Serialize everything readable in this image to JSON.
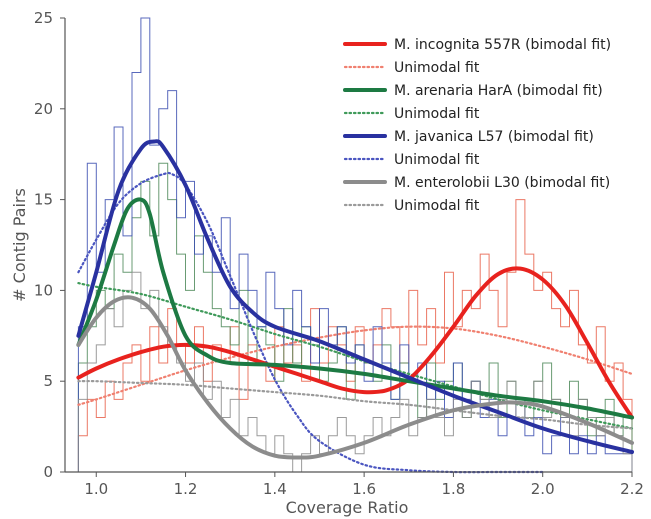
{
  "chart_data": {
    "type": "line",
    "title": "",
    "xlabel": "Coverage Ratio",
    "ylabel": "# Contig Pairs",
    "xlim": [
      0.93,
      2.2
    ],
    "ylim": [
      0,
      25
    ],
    "xticks": [
      "1.0",
      "1.2",
      "1.4",
      "1.6",
      "1.8",
      "2.0",
      "2.2"
    ],
    "yticks": [
      "0",
      "5",
      "10",
      "15",
      "20",
      "25"
    ],
    "grid": false,
    "legend_position": "top-right",
    "histograms": [
      {
        "name": "M. incognita 557R",
        "color": "#e8604a",
        "bin_edges": [
          0.96,
          0.98,
          1.0,
          1.02,
          1.04,
          1.06,
          1.08,
          1.1,
          1.12,
          1.14,
          1.16,
          1.18,
          1.2,
          1.22,
          1.24,
          1.26,
          1.28,
          1.3,
          1.32,
          1.34,
          1.36,
          1.38,
          1.4,
          1.42,
          1.44,
          1.46,
          1.48,
          1.5,
          1.52,
          1.54,
          1.56,
          1.58,
          1.6,
          1.62,
          1.64,
          1.66,
          1.68,
          1.7,
          1.72,
          1.74,
          1.76,
          1.78,
          1.8,
          1.82,
          1.84,
          1.86,
          1.88,
          1.9,
          1.92,
          1.94,
          1.96,
          1.98,
          2.0,
          2.02,
          2.04,
          2.06,
          2.08,
          2.1,
          2.12,
          2.14,
          2.16,
          2.18,
          2.2
        ],
        "counts": [
          2,
          4,
          3,
          5,
          4,
          6,
          7,
          5,
          8,
          6,
          9,
          7,
          6,
          8,
          5,
          7,
          6,
          8,
          4,
          7,
          6,
          5,
          8,
          6,
          7,
          5,
          9,
          6,
          8,
          7,
          5,
          8,
          6,
          7,
          9,
          8,
          6,
          10,
          7,
          9,
          6,
          11,
          8,
          10,
          9,
          12,
          10,
          8,
          11,
          15,
          12,
          10,
          11,
          9,
          8,
          10,
          7,
          6,
          8,
          5,
          6,
          4
        ]
      },
      {
        "name": "M. arenaria HarA",
        "color": "#4f8a5b",
        "bin_edges": [
          0.96,
          0.98,
          1.0,
          1.02,
          1.04,
          1.06,
          1.08,
          1.1,
          1.12,
          1.14,
          1.16,
          1.18,
          1.2,
          1.22,
          1.24,
          1.26,
          1.28,
          1.3,
          1.32,
          1.34,
          1.36,
          1.38,
          1.4,
          1.42,
          1.44,
          1.46,
          1.48,
          1.5,
          1.52,
          1.54,
          1.56,
          1.58,
          1.6,
          1.62,
          1.64,
          1.66,
          1.68,
          1.7,
          1.72,
          1.74,
          1.76,
          1.78,
          1.8,
          1.82,
          1.84,
          1.86,
          1.88,
          1.9,
          1.92,
          1.94,
          1.96,
          1.98,
          2.0,
          2.02,
          2.04,
          2.06,
          2.08,
          2.1,
          2.12,
          2.14,
          2.16,
          2.18,
          2.2
        ],
        "counts": [
          6,
          8,
          10,
          9,
          12,
          11,
          14,
          16,
          13,
          17,
          15,
          12,
          10,
          13,
          11,
          9,
          8,
          7,
          10,
          6,
          8,
          7,
          5,
          9,
          6,
          8,
          7,
          5,
          6,
          8,
          4,
          7,
          6,
          5,
          7,
          4,
          6,
          5,
          3,
          6,
          4,
          5,
          6,
          3,
          5,
          4,
          6,
          3,
          5,
          4,
          3,
          5,
          6,
          4,
          3,
          5,
          4,
          2,
          3,
          4,
          2,
          3
        ]
      },
      {
        "name": "M. javanica L57",
        "color": "#3c4fb0",
        "bin_edges": [
          0.96,
          0.98,
          1.0,
          1.02,
          1.04,
          1.06,
          1.08,
          1.1,
          1.12,
          1.14,
          1.16,
          1.18,
          1.2,
          1.22,
          1.24,
          1.26,
          1.28,
          1.3,
          1.32,
          1.34,
          1.36,
          1.38,
          1.4,
          1.42,
          1.44,
          1.46,
          1.48,
          1.5,
          1.52,
          1.54,
          1.56,
          1.58,
          1.6,
          1.62,
          1.64,
          1.66,
          1.68,
          1.7,
          1.72,
          1.74,
          1.76,
          1.78,
          1.8,
          1.82,
          1.84,
          1.86,
          1.88,
          1.9,
          1.92,
          1.94,
          1.96,
          1.98,
          2.0,
          2.02,
          2.04,
          2.06,
          2.08,
          2.1,
          2.12,
          2.14,
          2.16,
          2.18,
          2.2
        ],
        "counts": [
          8,
          17,
          11,
          15,
          19,
          13,
          22,
          25,
          18,
          20,
          21,
          14,
          16,
          12,
          13,
          11,
          14,
          9,
          12,
          10,
          8,
          11,
          9,
          7,
          10,
          8,
          6,
          9,
          7,
          8,
          6,
          7,
          5,
          8,
          6,
          4,
          7,
          5,
          6,
          4,
          5,
          3,
          6,
          4,
          5,
          3,
          4,
          2,
          3,
          4,
          2,
          3,
          1,
          2,
          3,
          1,
          2,
          1,
          2,
          1,
          1,
          1
        ]
      },
      {
        "name": "M. enterolobii L30",
        "color": "#8a8a8a",
        "bin_edges": [
          0.96,
          0.98,
          1.0,
          1.02,
          1.04,
          1.06,
          1.08,
          1.1,
          1.12,
          1.14,
          1.16,
          1.18,
          1.2,
          1.22,
          1.24,
          1.26,
          1.28,
          1.3,
          1.32,
          1.34,
          1.36,
          1.38,
          1.4,
          1.42,
          1.44,
          1.46,
          1.48,
          1.5,
          1.52,
          1.54,
          1.56,
          1.58,
          1.6,
          1.62,
          1.64,
          1.66,
          1.68,
          1.7,
          1.72,
          1.74,
          1.76,
          1.78,
          1.8,
          1.82,
          1.84,
          1.86,
          1.88,
          1.9,
          1.92,
          1.94,
          1.96,
          1.98,
          2.0,
          2.02,
          2.04,
          2.06,
          2.08,
          2.1,
          2.12,
          2.14,
          2.16,
          2.18,
          2.2
        ],
        "counts": [
          4,
          6,
          7,
          9,
          8,
          10,
          11,
          9,
          10,
          8,
          7,
          6,
          5,
          6,
          4,
          5,
          3,
          4,
          2,
          3,
          2,
          1,
          2,
          1,
          0,
          1,
          2,
          1,
          2,
          3,
          2,
          1,
          2,
          3,
          2,
          3,
          4,
          2,
          3,
          4,
          3,
          2,
          4,
          3,
          5,
          4,
          3,
          4,
          5,
          3,
          4,
          5,
          3,
          4,
          3,
          2,
          4,
          3,
          2,
          3,
          2,
          1
        ]
      }
    ],
    "series": [
      {
        "name": "M. incognita 557R (bimodal fit)",
        "color": "#e8221e",
        "style": "solid",
        "x": [
          0.96,
          1.0,
          1.05,
          1.1,
          1.15,
          1.2,
          1.25,
          1.3,
          1.35,
          1.4,
          1.45,
          1.5,
          1.55,
          1.6,
          1.65,
          1.7,
          1.75,
          1.8,
          1.85,
          1.9,
          1.95,
          2.0,
          2.05,
          2.1,
          2.15,
          2.2
        ],
        "y": [
          5.2,
          5.7,
          6.2,
          6.6,
          6.9,
          7.0,
          6.9,
          6.6,
          6.2,
          5.8,
          5.4,
          5.0,
          4.6,
          4.4,
          4.5,
          5.1,
          6.4,
          8.0,
          9.7,
          10.9,
          11.2,
          10.6,
          9.2,
          7.1,
          4.9,
          3.0
        ]
      },
      {
        "name": "Unimodal fit",
        "color": "#f08070",
        "style": "dotted",
        "x": [
          0.96,
          1.0,
          1.1,
          1.2,
          1.3,
          1.4,
          1.5,
          1.6,
          1.7,
          1.8,
          1.9,
          2.0,
          2.1,
          2.2
        ],
        "y": [
          3.7,
          4.0,
          4.8,
          5.6,
          6.3,
          6.9,
          7.4,
          7.8,
          8.0,
          7.9,
          7.5,
          6.9,
          6.2,
          5.4
        ]
      },
      {
        "name": "M. arenaria HarA (bimodal fit)",
        "color": "#1d7a43",
        "style": "solid",
        "x": [
          0.96,
          1.0,
          1.04,
          1.07,
          1.1,
          1.12,
          1.15,
          1.2,
          1.25,
          1.3,
          1.4,
          1.5,
          1.6,
          1.7,
          1.8,
          1.9,
          2.0,
          2.1,
          2.2
        ],
        "y": [
          7.0,
          9.5,
          12.5,
          14.5,
          15.0,
          14.2,
          11.0,
          7.5,
          6.4,
          6.0,
          5.9,
          5.7,
          5.4,
          5.0,
          4.6,
          4.2,
          3.9,
          3.5,
          3.0
        ]
      },
      {
        "name": "Unimodal fit",
        "color": "#3f9a5a",
        "style": "dotted",
        "x": [
          0.96,
          1.0,
          1.1,
          1.2,
          1.3,
          1.4,
          1.5,
          1.6,
          1.7,
          1.8,
          1.9,
          2.0,
          2.1,
          2.2
        ],
        "y": [
          10.4,
          10.2,
          9.8,
          9.1,
          8.4,
          7.6,
          6.9,
          6.1,
          5.4,
          4.7,
          4.0,
          3.4,
          2.9,
          2.4
        ]
      },
      {
        "name": "M. javanica L57 (bimodal fit)",
        "color": "#2931a0",
        "style": "solid",
        "x": [
          0.96,
          1.0,
          1.05,
          1.1,
          1.13,
          1.15,
          1.2,
          1.25,
          1.3,
          1.35,
          1.4,
          1.5,
          1.6,
          1.7,
          1.8,
          1.9,
          2.0,
          2.1,
          2.2
        ],
        "y": [
          7.5,
          11.0,
          15.5,
          17.8,
          18.2,
          17.9,
          15.8,
          12.8,
          10.2,
          8.8,
          8.0,
          7.2,
          6.2,
          5.2,
          4.2,
          3.3,
          2.4,
          1.7,
          1.1
        ]
      },
      {
        "name": "Unimodal fit",
        "color": "#4a55c0",
        "style": "dotted",
        "x": [
          0.96,
          1.0,
          1.05,
          1.1,
          1.15,
          1.17,
          1.2,
          1.25,
          1.3,
          1.35,
          1.4,
          1.45,
          1.5,
          1.6,
          1.7,
          1.8,
          1.9,
          2.0
        ],
        "y": [
          11.0,
          12.8,
          14.8,
          15.9,
          16.4,
          16.4,
          15.8,
          13.7,
          10.8,
          7.8,
          5.1,
          3.1,
          1.7,
          0.4,
          0.1,
          0.0,
          0.0,
          0.0
        ]
      },
      {
        "name": "M. enterolobii L30 (bimodal fit)",
        "color": "#8c8c8c",
        "style": "solid",
        "x": [
          0.96,
          1.0,
          1.04,
          1.08,
          1.12,
          1.16,
          1.2,
          1.25,
          1.3,
          1.35,
          1.4,
          1.45,
          1.5,
          1.6,
          1.7,
          1.8,
          1.9,
          1.95,
          2.0,
          2.1,
          2.2
        ],
        "y": [
          7.0,
          8.5,
          9.4,
          9.6,
          9.0,
          7.5,
          5.6,
          3.8,
          2.4,
          1.4,
          0.9,
          0.8,
          0.9,
          1.6,
          2.6,
          3.4,
          3.8,
          3.8,
          3.6,
          2.7,
          1.6
        ]
      },
      {
        "name": "Unimodal fit",
        "color": "#9a9a9a",
        "style": "dotted",
        "x": [
          0.96,
          1.0,
          1.1,
          1.2,
          1.3,
          1.4,
          1.5,
          1.6,
          1.7,
          1.8,
          1.9,
          2.0,
          2.1,
          2.2
        ],
        "y": [
          5.0,
          5.0,
          4.9,
          4.8,
          4.6,
          4.4,
          4.2,
          3.9,
          3.7,
          3.4,
          3.1,
          2.9,
          2.6,
          2.4
        ]
      }
    ]
  }
}
